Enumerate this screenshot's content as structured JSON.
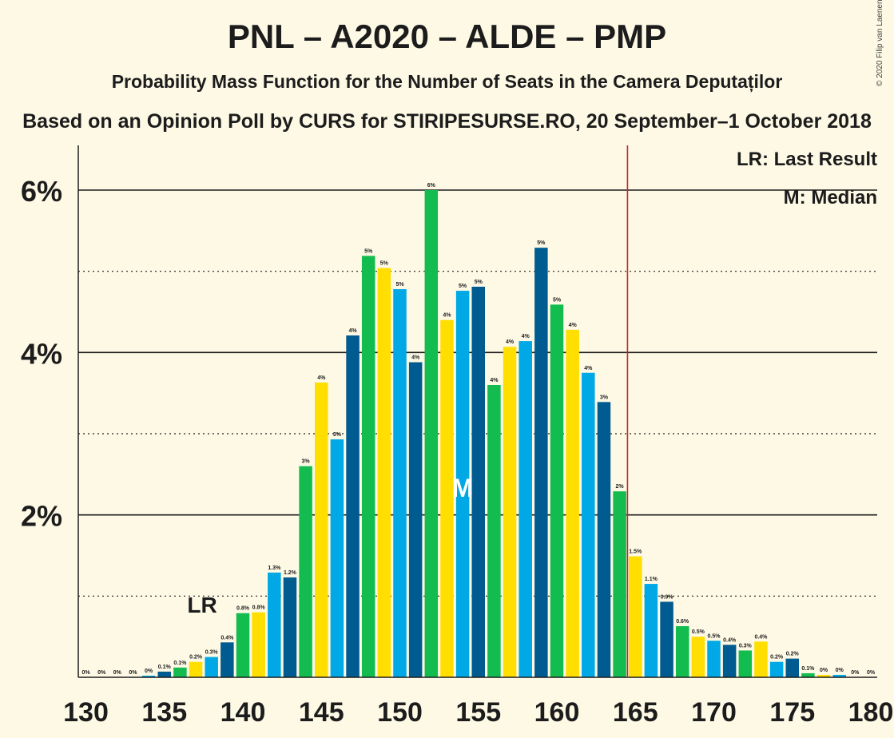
{
  "header": {
    "title": "PNL – A2020 – ALDE – PMP",
    "subtitle": "Probability Mass Function for the Number of Seats in the Camera Deputaților",
    "source": "Based on an Opinion Poll by CURS for STIRIPESURSE.RO, 20 September–1 October 2018",
    "copyright": "© 2020 Filip van Laenen"
  },
  "legend": {
    "last_result": "LR: Last Result",
    "median": "M: Median"
  },
  "colors": {
    "cycle": [
      "#00a8e6",
      "#005b91",
      "#13bc4f",
      "#ffde00"
    ],
    "last_result_line": "#cc1f2f",
    "axis": "#1c1c1c",
    "background": "#fdf9e5"
  },
  "chart_data": {
    "type": "bar",
    "x": [
      130,
      131,
      132,
      133,
      134,
      135,
      136,
      137,
      138,
      139,
      140,
      141,
      142,
      143,
      144,
      145,
      146,
      147,
      148,
      149,
      150,
      151,
      152,
      153,
      154,
      155,
      156,
      157,
      158,
      159,
      160,
      161,
      162,
      163,
      164,
      165,
      166,
      167,
      168,
      169,
      170,
      171,
      172,
      173,
      174,
      175,
      176,
      177,
      178,
      179,
      180
    ],
    "values": [
      0.0,
      0.0,
      0.0,
      0.0,
      0.02,
      0.07,
      0.12,
      0.19,
      0.25,
      0.43,
      0.79,
      0.8,
      1.29,
      1.23,
      2.6,
      3.63,
      2.93,
      4.21,
      5.19,
      5.04,
      4.78,
      3.88,
      6.0,
      4.4,
      4.76,
      4.81,
      3.6,
      4.07,
      4.14,
      5.29,
      4.59,
      4.28,
      3.75,
      3.39,
      2.29,
      1.49,
      1.15,
      0.93,
      0.63,
      0.5,
      0.45,
      0.4,
      0.33,
      0.44,
      0.19,
      0.23,
      0.05,
      0.03,
      0.03,
      0.0,
      0.0
    ],
    "labels": [
      "0%",
      "0%",
      "0%",
      "0%",
      "0%",
      "0.1%",
      "0.1%",
      "0.2%",
      "0.3%",
      "0.4%",
      "0.8%",
      "0.8%",
      "1.3%",
      "1.2%",
      "3%",
      "4%",
      "3%",
      "4%",
      "5%",
      "5%",
      "5%",
      "4%",
      "6%",
      "4%",
      "5%",
      "5%",
      "4%",
      "4%",
      "4%",
      "5%",
      "5%",
      "4%",
      "4%",
      "3%",
      "2%",
      "1.5%",
      "1.1%",
      "0.9%",
      "0.6%",
      "0.5%",
      "0.5%",
      "0.4%",
      "0.3%",
      "0.4%",
      "0.2%",
      "0.2%",
      "0.1%",
      "0%",
      "0%",
      "0%",
      "0%"
    ],
    "x_ticks": [
      "130",
      "135",
      "140",
      "145",
      "150",
      "155",
      "160",
      "165",
      "170",
      "175",
      "180"
    ],
    "y_ticks": [
      "2%",
      "4%",
      "6%"
    ],
    "ylim": [
      0,
      6.5
    ],
    "last_result": 137,
    "last_result_label": "LR",
    "median": 154,
    "median_label": "M",
    "majority_line": 165,
    "grid": "solid at 2% steps, dotted at odd percents"
  }
}
